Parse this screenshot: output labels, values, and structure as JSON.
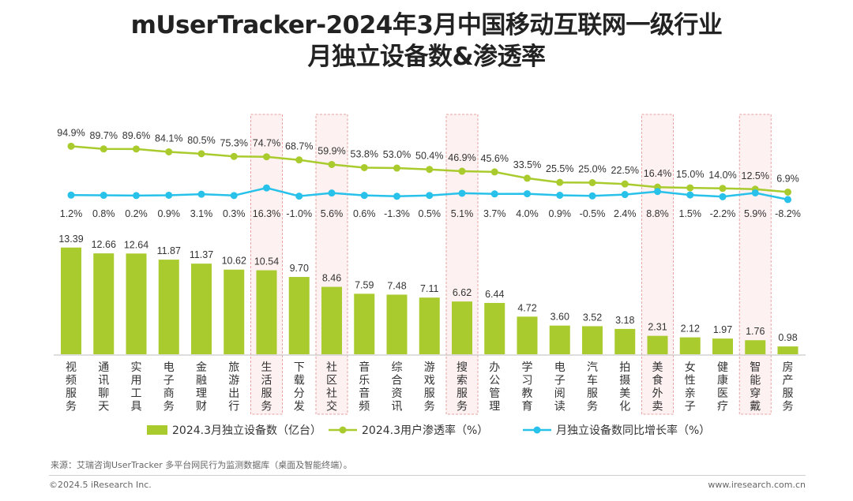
{
  "title": {
    "line1": "mUserTracker-2024年3月中国移动互联网一级行业",
    "line2": "月独立设备数&渗透率"
  },
  "chart_data": {
    "type": "bar",
    "title": "mUserTracker-2024年3月中国移动互联网一级行业月独立设备数&渗透率",
    "categories": [
      "视频服务",
      "通讯聊天",
      "实用工具",
      "电子商务",
      "金融理财",
      "旅游出行",
      "生活服务",
      "下载分发",
      "社区社交",
      "音乐音频",
      "综合资讯",
      "游戏服务",
      "搜索服务",
      "办公管理",
      "学习教育",
      "电子阅读",
      "汽车服务",
      "拍摄美化",
      "美食外卖",
      "女性亲子",
      "健康医疗",
      "智能穿戴",
      "房产服务"
    ],
    "highlighted": [
      "生活服务",
      "社区社交",
      "搜索服务",
      "美食外卖",
      "智能穿戴"
    ],
    "series": [
      {
        "name": "2024.3月独立设备数（亿台）",
        "kind": "bar",
        "color": "#a9cb2d",
        "values": [
          13.39,
          12.66,
          12.64,
          11.87,
          11.37,
          10.62,
          10.54,
          9.7,
          8.46,
          7.59,
          7.48,
          7.11,
          6.62,
          6.44,
          4.72,
          3.6,
          3.52,
          3.18,
          2.31,
          2.12,
          1.97,
          1.76,
          0.98
        ]
      },
      {
        "name": "2024.3用户渗透率（%）",
        "kind": "line",
        "color": "#a9cb2d",
        "values": [
          94.9,
          89.7,
          89.6,
          84.1,
          80.5,
          75.3,
          74.7,
          68.7,
          59.9,
          53.8,
          53.0,
          50.4,
          46.9,
          45.6,
          33.5,
          25.5,
          25.0,
          22.5,
          16.4,
          15.0,
          14.0,
          12.5,
          6.9
        ]
      },
      {
        "name": "月独立设备数同比增长率（%）",
        "kind": "line",
        "color": "#27c1ea",
        "values": [
          1.2,
          0.8,
          0.2,
          0.9,
          3.1,
          0.3,
          16.3,
          -1.0,
          5.6,
          0.6,
          -1.3,
          0.5,
          5.1,
          3.7,
          4.0,
          0.9,
          -0.5,
          2.4,
          8.8,
          1.5,
          -2.2,
          5.9,
          -8.2
        ]
      }
    ],
    "value_labels": {
      "bars": [
        "13.39",
        "12.66",
        "12.64",
        "11.87",
        "11.37",
        "10.62",
        "10.54",
        "9.70",
        "8.46",
        "7.59",
        "7.48",
        "7.11",
        "6.62",
        "6.44",
        "4.72",
        "3.60",
        "3.52",
        "3.18",
        "2.31",
        "2.12",
        "1.97",
        "1.76",
        "0.98"
      ],
      "penetration": [
        "94.9%",
        "89.7%",
        "89.6%",
        "84.1%",
        "80.5%",
        "75.3%",
        "74.7%",
        "68.7%",
        "59.9%",
        "53.8%",
        "53.0%",
        "50.4%",
        "46.9%",
        "45.6%",
        "33.5%",
        "25.5%",
        "25.0%",
        "22.5%",
        "16.4%",
        "15.0%",
        "14.0%",
        "12.5%",
        "6.9%"
      ],
      "growth": [
        "1.2%",
        "0.8%",
        "0.2%",
        "0.9%",
        "3.1%",
        "0.3%",
        "16.3%",
        "-1.0%",
        "5.6%",
        "0.6%",
        "-1.3%",
        "0.5%",
        "5.1%",
        "3.7%",
        "4.0%",
        "0.9%",
        "-0.5%",
        "2.4%",
        "8.8%",
        "1.5%",
        "-2.2%",
        "5.9%",
        "-8.2%"
      ]
    },
    "legend_position": "bottom",
    "grid": false
  },
  "footer": {
    "source": "来源：艾瑞咨询UserTracker 多平台网民行为监测数据库（桌面及智能终端）。",
    "copyright": "©2024.5 iResearch Inc.",
    "website": "www.iresearch.com.cn"
  }
}
